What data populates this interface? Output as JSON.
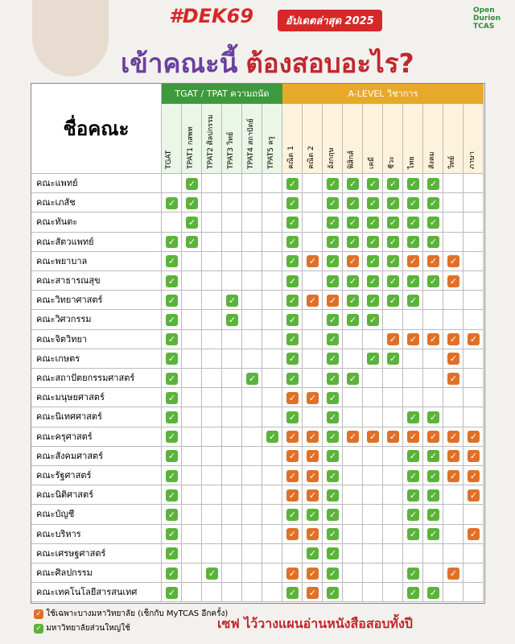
{
  "header": {
    "hashtag": "#DEK69",
    "update": "อัปเดตล่าสุด 2025",
    "headline_1": "เข้าคณะนี้",
    "headline_2": "ต้องสอบอะไร?",
    "logo": "Open Durion TCAS"
  },
  "table": {
    "name_header": "ชื่อคณะ",
    "group_1": "TGAT / TPAT ความถนัด",
    "group_2": "A-LEVEL วิชาการ",
    "columns": [
      "TGAT",
      "TPAT1 กสพท",
      "TPAT2 ศิลปกรรม",
      "TPAT3 วิทย์",
      "TPAT4 สถาปัตย์",
      "TPAT5 ครู",
      "คณิต 1",
      "คณิต 2",
      "อังกฤษ",
      "ฟิสิกส์",
      "เคมี",
      "ชีวะ",
      "ไทย",
      "สังคม",
      "วิทย์",
      "ภาษา"
    ],
    "rows": [
      {
        "name": "คณะแพทย์",
        "cells": [
          null,
          "G",
          null,
          null,
          null,
          null,
          "G",
          null,
          "G",
          "G",
          "G",
          "G",
          "G",
          "G",
          null,
          null
        ]
      },
      {
        "name": "คณะเภสัช",
        "cells": [
          "G",
          "G",
          null,
          null,
          null,
          null,
          "G",
          null,
          "G",
          "G",
          "G",
          "G",
          "G",
          "G",
          null,
          null
        ]
      },
      {
        "name": "คณะทันตะ",
        "cells": [
          null,
          "G",
          null,
          null,
          null,
          null,
          "G",
          null,
          "G",
          "G",
          "G",
          "G",
          "G",
          "G",
          null,
          null
        ]
      },
      {
        "name": "คณะสัตวแพทย์",
        "cells": [
          "G",
          "G",
          null,
          null,
          null,
          null,
          "G",
          null,
          "G",
          "G",
          "G",
          "G",
          "G",
          "G",
          null,
          null
        ]
      },
      {
        "name": "คณะพยาบาล",
        "cells": [
          "G",
          null,
          null,
          null,
          null,
          null,
          "G",
          "O",
          "G",
          "O",
          "G",
          "G",
          "O",
          "O",
          "O",
          null
        ]
      },
      {
        "name": "คณะสาธารณสุข",
        "cells": [
          "G",
          null,
          null,
          null,
          null,
          null,
          "G",
          null,
          "G",
          "G",
          "G",
          "G",
          "G",
          "G",
          "O",
          null
        ]
      },
      {
        "name": "คณะวิทยาศาสตร์",
        "cells": [
          "G",
          null,
          null,
          "G",
          null,
          null,
          "G",
          "O",
          "O",
          "G",
          "G",
          "G",
          "G",
          null,
          null,
          null
        ]
      },
      {
        "name": "คณะวิศวกรรม",
        "cells": [
          "G",
          null,
          null,
          "G",
          null,
          null,
          "G",
          null,
          "G",
          "G",
          "G",
          null,
          null,
          null,
          null,
          null
        ]
      },
      {
        "name": "คณะจิตวิทยา",
        "cells": [
          "G",
          null,
          null,
          null,
          null,
          null,
          "G",
          null,
          "G",
          null,
          null,
          "O",
          "O",
          "O",
          "O",
          "O"
        ]
      },
      {
        "name": "คณะเกษตร",
        "cells": [
          "G",
          null,
          null,
          null,
          null,
          null,
          "G",
          null,
          "G",
          null,
          "G",
          "G",
          null,
          null,
          "O",
          null
        ]
      },
      {
        "name": "คณะสถาปัตยกรรมศาสตร์",
        "cells": [
          "G",
          null,
          null,
          null,
          "G",
          null,
          "G",
          null,
          "G",
          "G",
          null,
          null,
          null,
          null,
          "O",
          null
        ]
      },
      {
        "name": "คณะมนุษยศาสตร์",
        "cells": [
          "G",
          null,
          null,
          null,
          null,
          null,
          "O",
          "O",
          "G",
          null,
          null,
          null,
          null,
          null,
          null,
          null
        ]
      },
      {
        "name": "คณะนิเทศศาสตร์",
        "cells": [
          "G",
          null,
          null,
          null,
          null,
          null,
          "G",
          null,
          "G",
          null,
          null,
          null,
          "G",
          "G",
          null,
          null
        ]
      },
      {
        "name": "คณะครุศาสตร์",
        "cells": [
          "G",
          null,
          null,
          null,
          null,
          "G",
          "O",
          "O",
          "G",
          "O",
          "O",
          "O",
          "O",
          "O",
          "O",
          "O"
        ]
      },
      {
        "name": "คณะสังคมศาสตร์",
        "cells": [
          "G",
          null,
          null,
          null,
          null,
          null,
          "O",
          "O",
          "G",
          null,
          null,
          null,
          "G",
          "G",
          "O",
          "O"
        ]
      },
      {
        "name": "คณะรัฐศาสตร์",
        "cells": [
          "G",
          null,
          null,
          null,
          null,
          null,
          "O",
          "O",
          "G",
          null,
          null,
          null,
          "G",
          "G",
          "O",
          "O"
        ]
      },
      {
        "name": "คณะนิติศาสตร์",
        "cells": [
          "G",
          null,
          null,
          null,
          null,
          null,
          "O",
          "O",
          "G",
          null,
          null,
          null,
          "G",
          "G",
          null,
          "O"
        ]
      },
      {
        "name": "คณะบัญชี",
        "cells": [
          "G",
          null,
          null,
          null,
          null,
          null,
          "G",
          "G",
          "G",
          null,
          null,
          null,
          "G",
          "G",
          null,
          null
        ]
      },
      {
        "name": "คณะบริหาร",
        "cells": [
          "G",
          null,
          null,
          null,
          null,
          null,
          "O",
          "O",
          "G",
          null,
          null,
          null,
          "G",
          "G",
          null,
          "O"
        ]
      },
      {
        "name": "คณะเศรษฐศาสตร์",
        "cells": [
          "G",
          null,
          null,
          null,
          null,
          null,
          null,
          "G",
          "G",
          null,
          null,
          null,
          null,
          null,
          null,
          null
        ]
      },
      {
        "name": "คณะศิลปกรรม",
        "cells": [
          "G",
          null,
          "G",
          null,
          null,
          null,
          "O",
          "O",
          "G",
          null,
          null,
          null,
          "G",
          null,
          "O",
          null
        ]
      },
      {
        "name": "คณะเทคโนโลยีสารสนเทศ",
        "cells": [
          "G",
          null,
          null,
          null,
          null,
          null,
          "G",
          "O",
          "G",
          null,
          null,
          null,
          "G",
          "G",
          null,
          null
        ]
      }
    ]
  },
  "legend": {
    "orange": "ใช้เฉพาะบางมหาวิทยาลัย (เช็กกับ MyTCAS อีกครั้ง)",
    "green": "มหาวิทยาลัยส่วนใหญ่ใช้"
  },
  "footer": "เซฟ ไว้วางแผนอ่านหนังสือสอบทั้งปี"
}
